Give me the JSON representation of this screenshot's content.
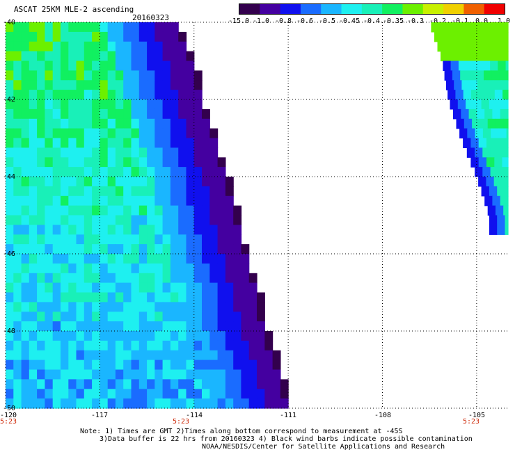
{
  "header": {
    "title": "ASCAT 25KM MLE-2 ascending",
    "date": "20160323"
  },
  "colorbar": {
    "labels": [
      "-15.0",
      "-1.0",
      "-0.8",
      "-0.6",
      "-0.5",
      "-0.45",
      "-0.4",
      "-0.35",
      "-0.3",
      "-0.2",
      "-0.1",
      "0.0",
      "1.0"
    ],
    "colors": [
      "#33004d",
      "#4400a0",
      "#1010ee",
      "#1a6cff",
      "#1ab6ff",
      "#1ef0f0",
      "#19f0b8",
      "#11f060",
      "#6cf000",
      "#c8f000",
      "#f0d000",
      "#f06000",
      "#f00000"
    ]
  },
  "axes": {
    "lon_labels": [
      "-120",
      "-117",
      "-114",
      "-111",
      "-108",
      "-105"
    ],
    "lat_labels": [
      "-40",
      "-42",
      "-44",
      "-46",
      "-48",
      "-50"
    ],
    "times": [
      "5:23",
      "5:23",
      "5:23"
    ]
  },
  "notes": {
    "line1": "Note: 1) Times are GMT 2)Times along bottom correspond to measurement at -45S",
    "line2": "3)Data buffer is 22 hrs from 20160323 4) Black wind barbs indicate possible contamination",
    "line3": "NOAA/NESDIS/Center for Satellite Applications and Research"
  },
  "map": {
    "lon_range": [
      -120,
      -104
    ],
    "lat_range": [
      -50,
      -40
    ],
    "swath_left_edge": [
      [
        -40,
        -114.6
      ],
      [
        -41,
        -114.1
      ],
      [
        -42,
        -113.8
      ],
      [
        -43,
        -113.4
      ],
      [
        -44,
        -113.0
      ],
      [
        -45,
        -112.7
      ],
      [
        -46,
        -112.4
      ],
      [
        -47,
        -112.0
      ],
      [
        -48,
        -111.8
      ],
      [
        -49,
        -111.3
      ],
      [
        -50,
        -111.0
      ]
    ],
    "swath_right_edge": [
      [
        -40,
        -106.5
      ],
      [
        -41,
        -106.1
      ],
      [
        -42,
        -105.9
      ],
      [
        -43,
        -105.5
      ],
      [
        -44,
        -105.0
      ],
      [
        -45,
        -104.6
      ]
    ]
  }
}
